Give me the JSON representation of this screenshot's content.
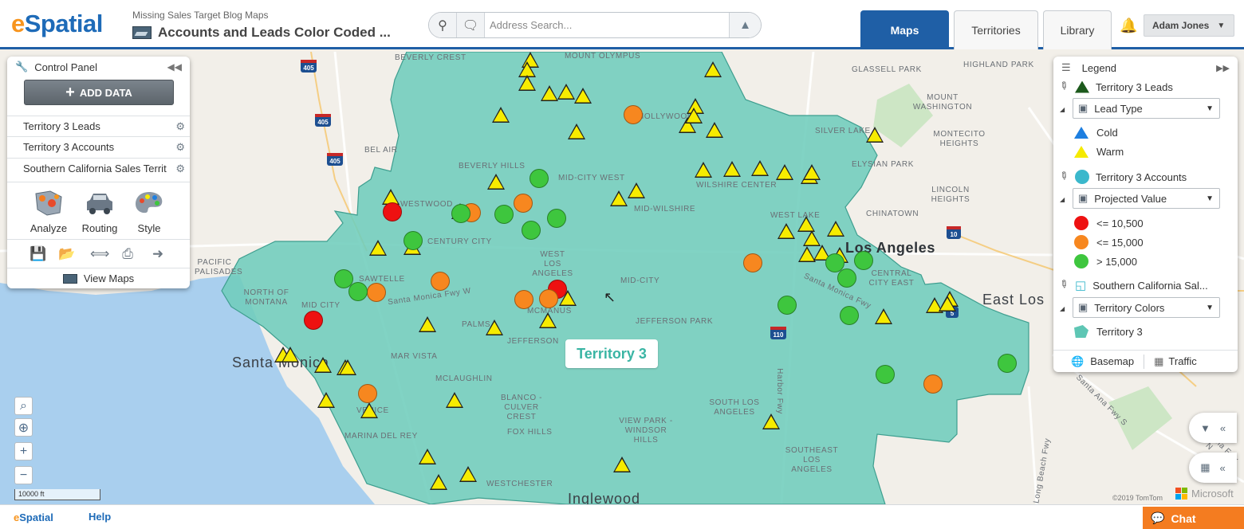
{
  "header": {
    "logo_e": "e",
    "logo_rest": "Spatial",
    "map_subtitle": "Missing Sales Target Blog Maps",
    "map_title": "Accounts and Leads Color Coded ...",
    "search_placeholder": "Address Search...",
    "tabs": [
      {
        "label": "Maps",
        "active": true
      },
      {
        "label": "Territories",
        "active": false
      },
      {
        "label": "Library",
        "active": false
      }
    ],
    "user_name": "Adam Jones",
    "brand_color": "#1f5fa6",
    "accent_color": "#f7941d"
  },
  "control_panel": {
    "title": "Control Panel",
    "add_data_label": "ADD DATA",
    "layers": [
      "Territory 3 Leads",
      "Territory 3 Accounts",
      "Southern California Sales Territ"
    ],
    "tools": [
      "Analyze",
      "Routing",
      "Style"
    ],
    "actions": [
      "save-icon",
      "open-folder-icon",
      "share-icon",
      "print-icon",
      "export-icon"
    ],
    "view_maps_label": "View Maps"
  },
  "legend": {
    "title": "Legend",
    "groups": [
      {
        "layer": "Territory 3 Leads",
        "selector": "Lead Type",
        "items": [
          {
            "label": "Cold",
            "color": "#1e7fe0"
          },
          {
            "label": "Warm",
            "color": "#f5ea00"
          }
        ]
      },
      {
        "layer": "Territory 3 Accounts",
        "selector": "Projected Value",
        "items": [
          {
            "label": "<= 10,500",
            "color": "#ee1111"
          },
          {
            "label": "<= 15,000",
            "color": "#f7871f"
          },
          {
            "label": "> 15,000",
            "color": "#3ec63e"
          }
        ]
      },
      {
        "layer": "Southern California Sal...",
        "selector": "Territory Colors",
        "items": [
          {
            "label": "Territory 3",
            "color": "#5ec6b4"
          }
        ]
      }
    ],
    "basemap_label": "Basemap",
    "traffic_label": "Traffic"
  },
  "map": {
    "territory_label": "Territory 3",
    "territory_color": "#6fcdbc",
    "scale_label": "10000 ft",
    "copyright": "©2019 TomTom",
    "microsoft_label": "Microsoft",
    "places": [
      "BEVERLY CREST",
      "MOUNT OLYMPUS",
      "HIGHLAND PARK",
      "GLASSELL PARK",
      "MOUNT WASHINGTON",
      "BEL AIR",
      "HOLLYWOOD",
      "SILVER LAKE",
      "MONTECITO HEIGHTS",
      "BEVERLY HILLS",
      "MID-CITY WEST",
      "WILSHIRE CENTER",
      "ELYSIAN PARK",
      "LINCOLN HEIGHTS",
      "WESTWOOD",
      "MID-WILSHIRE",
      "CHINATOWN",
      "WEST LAKE",
      "CENTURY CITY",
      "PACIFIC PALISADES",
      "WEST LOS ANGELES",
      "SAWTELLE",
      "Los Angeles",
      "CENTRAL CITY EAST",
      "NORTH OF MONTANA",
      "MID CITY",
      "MID-CITY",
      "East Los",
      "PALMS",
      "MCMANUS",
      "JEFFERSON PARK",
      "JEFFERSON",
      "MAR VISTA",
      "Santa Monica",
      "MCLAUGHLIN",
      "BLANCO - CULVER CREST",
      "SOUTH LOS ANGELES",
      "VENICE",
      "FOX HILLS",
      "VIEW PARK - WINDSOR HILLS",
      "MARINA DEL REY",
      "SOUTHEAST LOS ANGELES",
      "WESTCHESTER",
      "Inglewood",
      "Santa Monica Fwy W",
      "Harbor Fwy",
      "Santa Monica Fwy",
      "Santa Ana Fwy S",
      "Long Beach Fwy",
      "Santa Ana Fwy N"
    ],
    "highway_shields": [
      "405",
      "405",
      "405",
      "10",
      "110",
      "5"
    ]
  },
  "footer": {
    "logo": "eSpatial",
    "help_label": "Help",
    "chat_label": "Chat"
  }
}
